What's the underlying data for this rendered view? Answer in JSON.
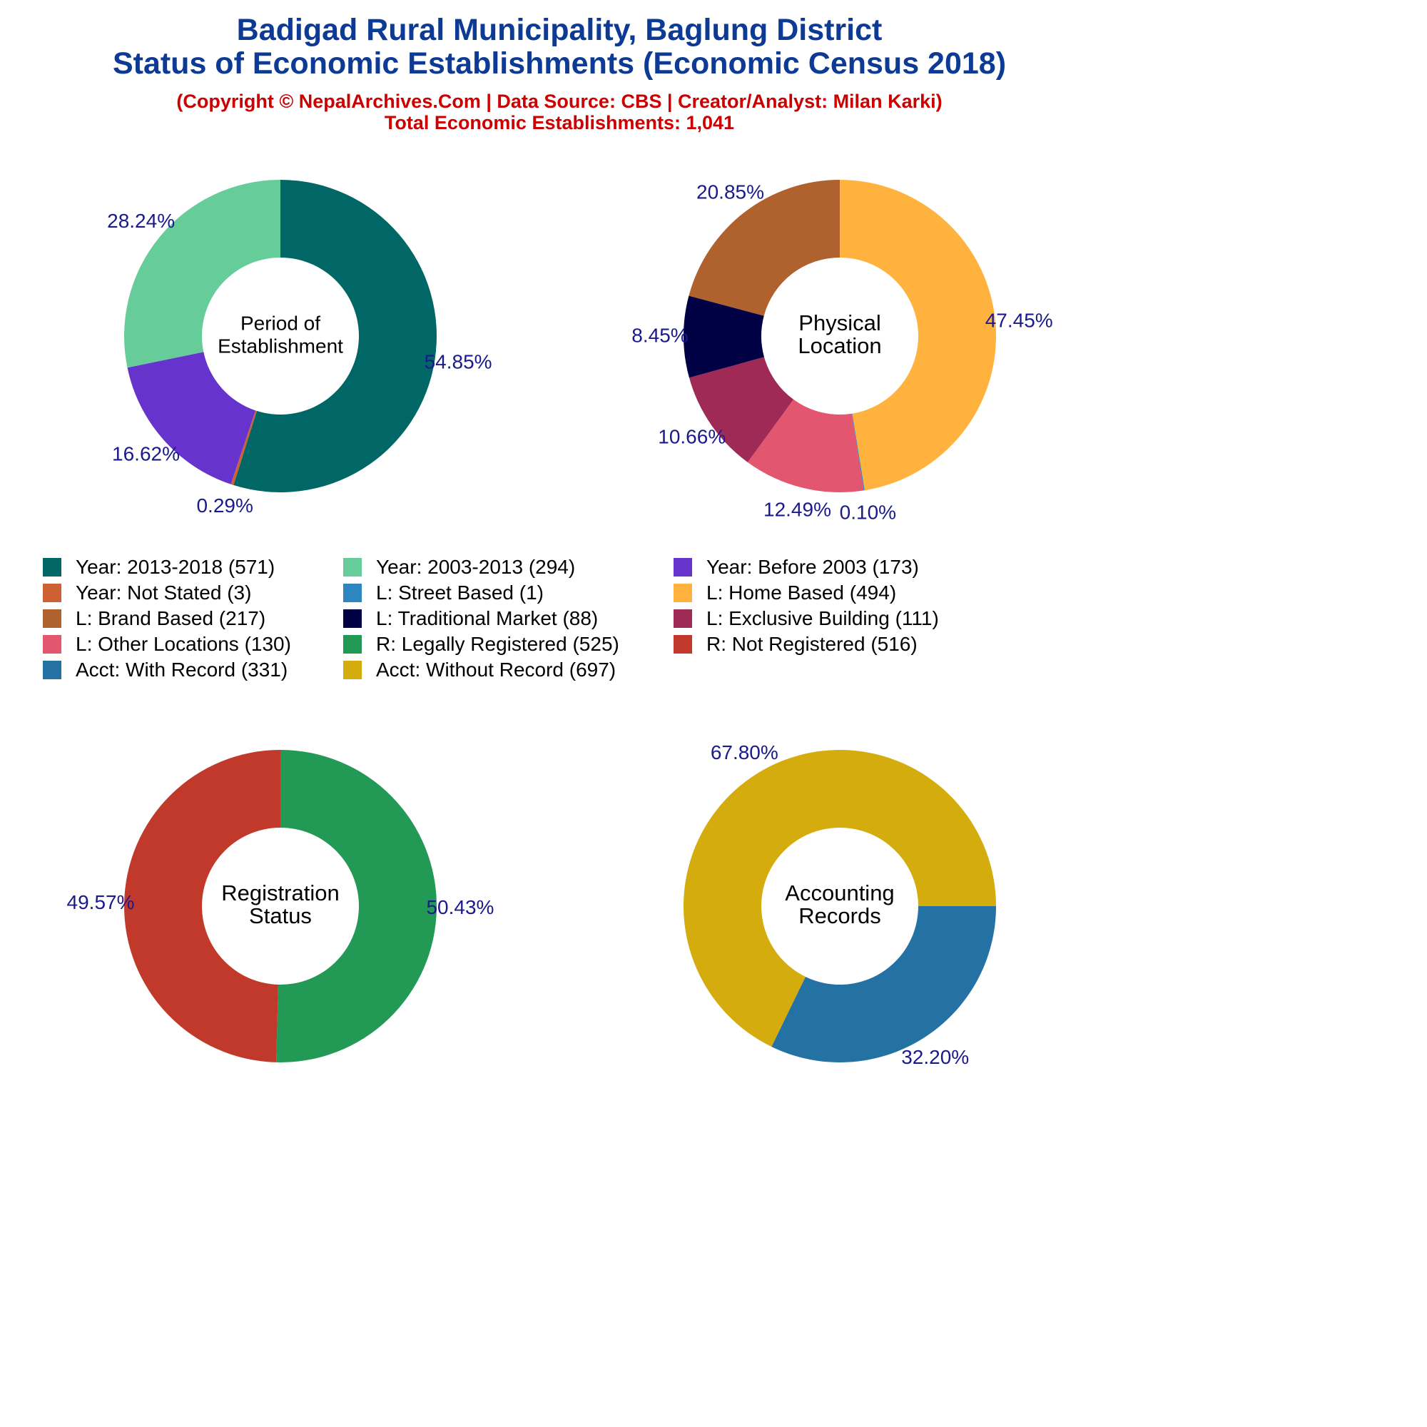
{
  "header": {
    "title_line1": "Badigad Rural Municipality, Baglung District",
    "title_line2": "Status of Economic Establishments (Economic Census 2018)",
    "copyright": "(Copyright © NepalArchives.Com | Data Source: CBS | Creator/Analyst: Milan Karki)",
    "total": "Total Economic Establishments: 1,041"
  },
  "colors": {
    "title": "#0d3a94",
    "subtitle": "#cc0000",
    "pct_label": "#1a1a8c",
    "center_label": "#000000"
  },
  "chart_data": [
    {
      "type": "donut",
      "center_label": [
        "Period of",
        "Establishment"
      ],
      "slices": [
        {
          "name": "Year: 2013-2018",
          "value": 571,
          "pct_label": "54.85%",
          "color": "#006666"
        },
        {
          "name": "Year: Not Stated",
          "value": 3,
          "pct_label": "0.29%",
          "color": "#cd6133"
        },
        {
          "name": "Year: Before 2003",
          "value": 173,
          "pct_label": "16.62%",
          "color": "#6633cc"
        },
        {
          "name": "Year: 2003-2013",
          "value": 294,
          "pct_label": "28.24%",
          "color": "#66cc99"
        }
      ]
    },
    {
      "type": "donut",
      "center_label": [
        "Physical",
        "Location"
      ],
      "slices": [
        {
          "name": "L: Home Based",
          "value": 494,
          "pct_label": "47.45%",
          "color": "#ffb33e"
        },
        {
          "name": "L: Street Based",
          "value": 1,
          "pct_label": "0.10%",
          "color": "#2e86c1"
        },
        {
          "name": "L: Other Locations",
          "value": 130,
          "pct_label": "12.49%",
          "color": "#e3566f"
        },
        {
          "name": "L: Exclusive Building",
          "value": 111,
          "pct_label": "10.66%",
          "color": "#9e2a55"
        },
        {
          "name": "L: Traditional Market",
          "value": 88,
          "pct_label": "8.45%",
          "color": "#000044"
        },
        {
          "name": "L: Brand Based",
          "value": 217,
          "pct_label": "20.85%",
          "color": "#b0622e"
        }
      ]
    },
    {
      "type": "donut",
      "center_label": [
        "Registration",
        "Status"
      ],
      "slices": [
        {
          "name": "R: Legally Registered",
          "value": 525,
          "pct_label": "50.43%",
          "color": "#229955"
        },
        {
          "name": "R: Not Registered",
          "value": 516,
          "pct_label": "49.57%",
          "color": "#c0392b"
        }
      ]
    },
    {
      "type": "donut",
      "center_label": [
        "Accounting",
        "Records"
      ],
      "slices": [
        {
          "name": "Acct: With Record",
          "value": 331,
          "pct_label": "32.20%",
          "color": "#2471a3"
        },
        {
          "name": "Acct: Without Record",
          "value": 697,
          "pct_label": "67.80%",
          "color": "#d4ac0d"
        }
      ]
    }
  ],
  "legend": [
    {
      "label": "Year: 2013-2018 (571)",
      "color": "#006666"
    },
    {
      "label": "Year: 2003-2013 (294)",
      "color": "#66cc99"
    },
    {
      "label": "Year: Before 2003 (173)",
      "color": "#6633cc"
    },
    {
      "label": "Year: Not Stated (3)",
      "color": "#cd6133"
    },
    {
      "label": "L: Street Based (1)",
      "color": "#2e86c1"
    },
    {
      "label": "L: Home Based (494)",
      "color": "#ffb33e"
    },
    {
      "label": "L: Brand Based (217)",
      "color": "#b0622e"
    },
    {
      "label": "L: Traditional Market (88)",
      "color": "#000044"
    },
    {
      "label": "L: Exclusive Building (111)",
      "color": "#9e2a55"
    },
    {
      "label": "L: Other Locations (130)",
      "color": "#e3566f"
    },
    {
      "label": "R: Legally Registered (525)",
      "color": "#229955"
    },
    {
      "label": "R: Not Registered (516)",
      "color": "#c0392b"
    },
    {
      "label": "Acct: With Record (331)",
      "color": "#2471a3"
    },
    {
      "label": "Acct: Without Record (697)",
      "color": "#d4ac0d"
    }
  ]
}
